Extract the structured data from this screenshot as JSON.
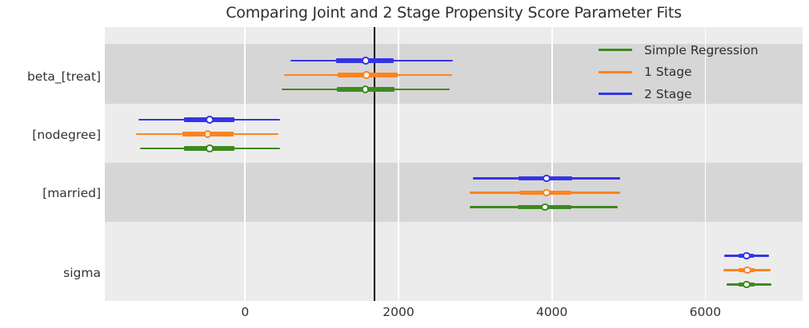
{
  "title": "Comparing Joint and 2 Stage Propensity Score Parameter Fits",
  "chart_data": {
    "type": "scatter",
    "subtype": "horizontal-forest-plot-with-intervals",
    "title": "Comparing Joint and 2 Stage Propensity Score Parameter Fits",
    "categories": [
      "beta_[treat]",
      "[nodegree]",
      "[married]",
      "sigma"
    ],
    "x_ticks": [
      0,
      2000,
      4000,
      6000
    ],
    "x_tick_labels": [
      "0",
      "2000",
      "4000",
      "6000"
    ],
    "x_range": [
      -1830,
      7270
    ],
    "grid": "vertical-white-on-gray",
    "background_bands": "alternating light/dark gray per category",
    "legend_position": "upper-right-inside",
    "reference_line": {
      "x": 1690,
      "color": "#000000"
    },
    "series": [
      {
        "name": "Simple Regression",
        "color": "#3c8b1f",
        "points": [
          {
            "category": "beta_[treat]",
            "est": 1565,
            "ci50": [
              1200,
              1950
            ],
            "ci95": [
              480,
              2670
            ]
          },
          {
            "category": "[nodegree]",
            "est": -460,
            "ci50": [
              -795,
              -135
            ],
            "ci95": [
              -1365,
              460
            ]
          },
          {
            "category": "[married]",
            "est": 3910,
            "ci50": [
              3555,
              4255
            ],
            "ci95": [
              2930,
              4860
            ]
          },
          {
            "category": "sigma",
            "est": 6540,
            "ci50": [
              6435,
              6645
            ],
            "ci95": [
              6280,
              6865
            ]
          }
        ]
      },
      {
        "name": "1 Stage",
        "color": "#fd831d",
        "points": [
          {
            "category": "beta_[treat]",
            "est": 1585,
            "ci50": [
              1210,
              1990
            ],
            "ci95": [
              510,
              2700
            ]
          },
          {
            "category": "[nodegree]",
            "est": -490,
            "ci50": [
              -815,
              -145
            ],
            "ci95": [
              -1420,
              440
            ]
          },
          {
            "category": "[married]",
            "est": 3930,
            "ci50": [
              3580,
              4255
            ],
            "ci95": [
              2930,
              4890
            ]
          },
          {
            "category": "sigma",
            "est": 6550,
            "ci50": [
              6435,
              6645
            ],
            "ci95": [
              6240,
              6855
            ]
          }
        ]
      },
      {
        "name": "2 Stage",
        "color": "#3434e6",
        "points": [
          {
            "category": "beta_[treat]",
            "est": 1570,
            "ci50": [
              1190,
              1940
            ],
            "ci95": [
              595,
              2710
            ]
          },
          {
            "category": "[nodegree]",
            "est": -460,
            "ci50": [
              -795,
              -135
            ],
            "ci95": [
              -1390,
              460
            ]
          },
          {
            "category": "[married]",
            "est": 3930,
            "ci50": [
              3570,
              4265
            ],
            "ci95": [
              2975,
              4890
            ]
          },
          {
            "category": "sigma",
            "est": 6540,
            "ci50": [
              6435,
              6635
            ],
            "ci95": [
              6250,
              6830
            ]
          }
        ]
      }
    ]
  },
  "colors": {
    "band_light": "#ececec",
    "band_dark": "#d6d6d6",
    "gridline": "#ffffff",
    "reference_line": "#000000",
    "text": "#333333"
  }
}
